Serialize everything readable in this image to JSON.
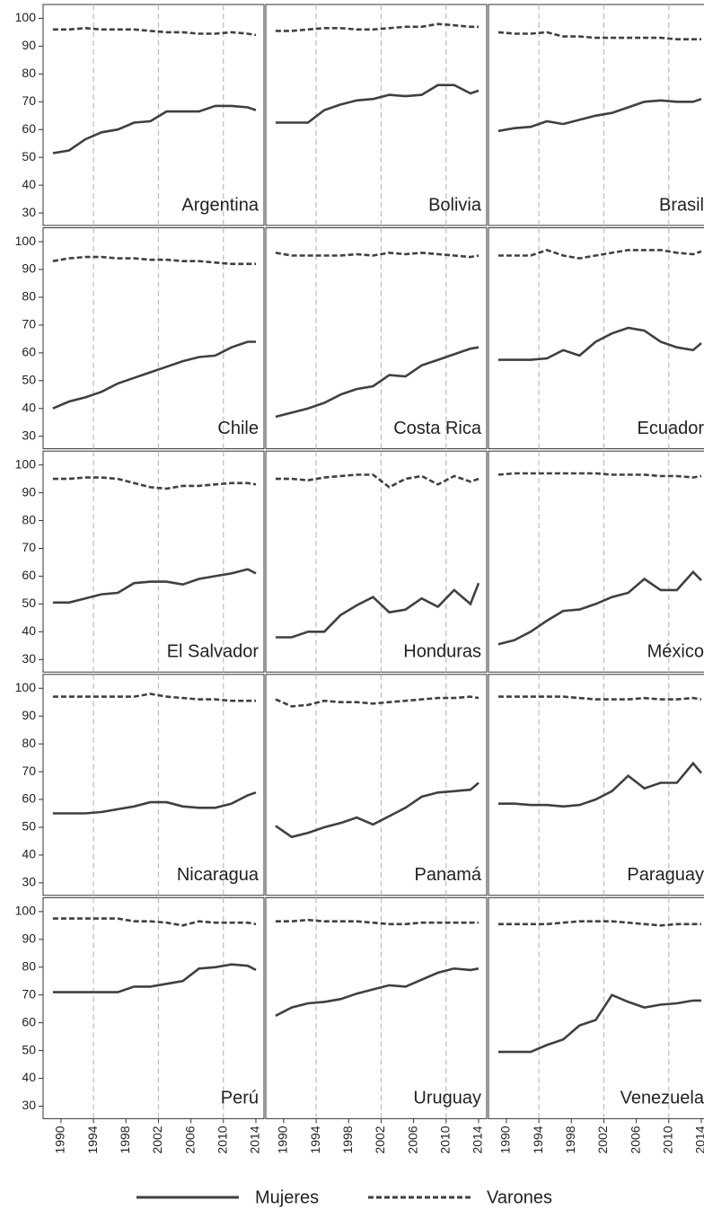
{
  "chart_data": {
    "type": "line",
    "x": [
      1989,
      1991,
      1993,
      1995,
      1997,
      1999,
      2001,
      2003,
      2005,
      2007,
      2009,
      2011,
      2013,
      2014
    ],
    "xlim": [
      1987.8,
      2015
    ],
    "xticks": [
      1990,
      1994,
      1998,
      2002,
      2006,
      2010,
      2014
    ],
    "xgrid": [
      1994,
      2002,
      2010
    ],
    "ylim": [
      25.5,
      105
    ],
    "yticks": [
      30,
      40,
      50,
      60,
      70,
      80,
      90,
      100
    ],
    "legend": [
      {
        "name": "Mujeres",
        "color": "#404040",
        "dash": "solid"
      },
      {
        "name": "Varones",
        "color": "#404040",
        "dash": "dashed"
      }
    ],
    "panels": [
      {
        "title": "Argentina",
        "series": [
          {
            "values": [
              51.5,
              52.5,
              56.5,
              59,
              60,
              62.5,
              63,
              66.5,
              66.5,
              66.5,
              68.5,
              68.5,
              68,
              67
            ]
          },
          {
            "values": [
              96,
              96,
              96.5,
              96,
              96,
              96,
              95.5,
              95,
              95,
              94.5,
              94.5,
              95,
              94.5,
              94
            ]
          }
        ]
      },
      {
        "title": "Bolivia",
        "series": [
          {
            "values": [
              62.5,
              62.5,
              62.5,
              67,
              69,
              70.5,
              71,
              72.5,
              72,
              72.5,
              76,
              76,
              73,
              74
            ]
          },
          {
            "values": [
              95.5,
              95.5,
              96,
              96.5,
              96.5,
              96,
              96,
              96.5,
              97,
              97,
              98,
              97.5,
              97,
              97
            ]
          }
        ]
      },
      {
        "title": "Brasil",
        "series": [
          {
            "values": [
              59.5,
              60.5,
              61,
              63,
              62,
              63.5,
              65,
              66,
              68,
              70,
              70.5,
              70,
              70,
              71
            ]
          },
          {
            "values": [
              95,
              94.5,
              94.5,
              95,
              93.5,
              93.5,
              93,
              93,
              93,
              93,
              93,
              92.5,
              92.5,
              92.5
            ]
          }
        ]
      },
      {
        "title": "Chile",
        "series": [
          {
            "values": [
              40,
              42.5,
              44,
              46,
              49,
              51,
              53,
              55,
              57,
              58.5,
              59,
              62,
              64,
              64
            ]
          },
          {
            "values": [
              93,
              94,
              94.5,
              94.5,
              94,
              94,
              93.5,
              93.5,
              93,
              93,
              92.5,
              92,
              92,
              92
            ]
          }
        ]
      },
      {
        "title": "Costa Rica",
        "series": [
          {
            "values": [
              37,
              38.5,
              40,
              42,
              45,
              47,
              48,
              52,
              51.5,
              55.5,
              57.5,
              59.5,
              61.5,
              62
            ]
          },
          {
            "values": [
              96,
              95,
              95,
              95,
              95,
              95.5,
              95,
              96,
              95.5,
              96,
              95.5,
              95,
              94.5,
              95
            ]
          }
        ]
      },
      {
        "title": "Ecuador",
        "series": [
          {
            "values": [
              57.5,
              57.5,
              57.5,
              58,
              61,
              59,
              64,
              67,
              69,
              68,
              64,
              62,
              61,
              63.5
            ]
          },
          {
            "values": [
              95,
              95,
              95,
              97,
              95,
              94,
              95,
              96,
              97,
              97,
              97,
              96,
              95.5,
              96.5
            ]
          }
        ]
      },
      {
        "title": "El Salvador",
        "series": [
          {
            "values": [
              50.5,
              50.5,
              52,
              53.5,
              54,
              57.5,
              58,
              58,
              57,
              59,
              60,
              61,
              62.5,
              61
            ]
          },
          {
            "values": [
              95,
              95,
              95.5,
              95.5,
              95,
              93.5,
              92,
              91.5,
              92.5,
              92.5,
              93,
              93.5,
              93.5,
              93
            ]
          }
        ]
      },
      {
        "title": "Honduras",
        "series": [
          {
            "values": [
              38,
              38,
              40,
              40,
              46,
              49.5,
              52.5,
              47,
              48,
              52,
              49,
              55,
              50,
              57.5
            ]
          },
          {
            "values": [
              95,
              95,
              94.5,
              95.5,
              96,
              96.5,
              96.5,
              92,
              95,
              96,
              93,
              96,
              94,
              95
            ]
          }
        ]
      },
      {
        "title": "México",
        "series": [
          {
            "values": [
              35.5,
              37,
              40,
              44,
              47.5,
              48,
              50,
              52.5,
              54,
              59,
              55,
              55,
              61.5,
              58.5
            ]
          },
          {
            "values": [
              96.5,
              97,
              97,
              97,
              97,
              97,
              97,
              96.5,
              96.5,
              96.5,
              96,
              96,
              95.5,
              96
            ]
          }
        ]
      },
      {
        "title": "Nicaragua",
        "series": [
          {
            "values": [
              55,
              55,
              55,
              55.5,
              56.5,
              57.5,
              59,
              59,
              57.5,
              57,
              57,
              58.5,
              61.5,
              62.5
            ]
          },
          {
            "values": [
              97,
              97,
              97,
              97,
              97,
              97,
              98,
              97,
              96.5,
              96,
              96,
              95.5,
              95.5,
              95.5
            ]
          }
        ]
      },
      {
        "title": "Panamá",
        "series": [
          {
            "values": [
              50.5,
              46.5,
              48,
              50,
              51.5,
              53.5,
              51,
              54,
              57,
              61,
              62.5,
              63,
              63.5,
              66
            ]
          },
          {
            "values": [
              96,
              93.5,
              94,
              95.5,
              95,
              95,
              94.5,
              95,
              95.5,
              96,
              96.5,
              96.5,
              97,
              96.5
            ]
          }
        ]
      },
      {
        "title": "Paraguay",
        "series": [
          {
            "values": [
              58.5,
              58.5,
              58,
              58,
              57.5,
              58,
              60,
              63,
              68.5,
              64,
              66,
              66,
              73,
              69.5
            ]
          },
          {
            "values": [
              97,
              97,
              97,
              97,
              97,
              96.5,
              96,
              96,
              96,
              96.5,
              96,
              96,
              96.5,
              96
            ]
          }
        ]
      },
      {
        "title": "Perú",
        "series": [
          {
            "values": [
              71,
              71,
              71,
              71,
              71,
              73,
              73,
              74,
              75,
              79.5,
              80,
              81,
              80.5,
              79
            ]
          },
          {
            "values": [
              97.5,
              97.5,
              97.5,
              97.5,
              97.5,
              96.5,
              96.5,
              96,
              95,
              96.5,
              96,
              96,
              96,
              95.5
            ]
          }
        ]
      },
      {
        "title": "Uruguay",
        "series": [
          {
            "values": [
              62.5,
              65.5,
              67,
              67.5,
              68.5,
              70.5,
              72,
              73.5,
              73,
              75.5,
              78,
              79.5,
              79,
              79.5
            ]
          },
          {
            "values": [
              96.5,
              96.5,
              97,
              96.5,
              96.5,
              96.5,
              96,
              95.5,
              95.5,
              96,
              96,
              96,
              96,
              96
            ]
          }
        ]
      },
      {
        "title": "Venezuela",
        "series": [
          {
            "values": [
              49.5,
              49.5,
              49.5,
              52,
              54,
              59,
              61,
              70,
              67.5,
              65.5,
              66.5,
              67,
              68,
              68
            ]
          },
          {
            "values": [
              95.5,
              95.5,
              95.5,
              95.5,
              96,
              96.5,
              96.5,
              96.5,
              96,
              95.5,
              95,
              95.5,
              95.5,
              95.5
            ]
          }
        ]
      }
    ]
  }
}
